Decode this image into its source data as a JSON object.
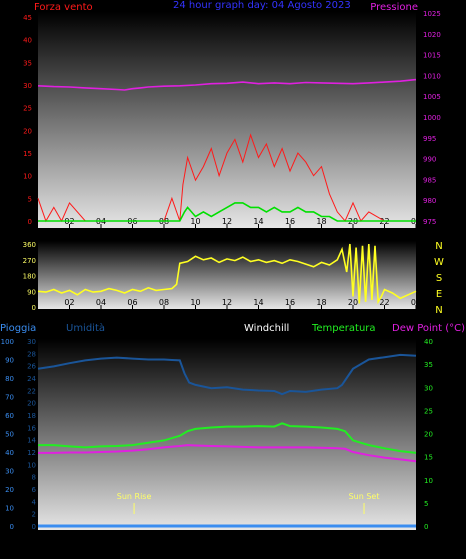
{
  "colors": {
    "wind": "#ff1a1a",
    "gust": "#00e000",
    "pressure": "#e020e0",
    "direction": "#ffff22",
    "title": "#3333ff",
    "rain": "#3a8df0",
    "humidity": "#1a5599",
    "windchill": "#ffffff",
    "temperature": "#22ee22",
    "dewpoint": "#e020e0",
    "sun": "#ffff66",
    "ticks_x": "#000000"
  },
  "chart_data": [
    {
      "type": "line",
      "title": "24 hour graph day:  04 Agosto 2023",
      "left_axis_label": "Forza vento",
      "right_axis_label": "Pressione",
      "left_ylim": [
        0,
        45
      ],
      "left_ticks": [
        0,
        5,
        10,
        15,
        20,
        25,
        30,
        35,
        40,
        45
      ],
      "right_ylim": [
        975,
        1025
      ],
      "right_ticks": [
        975,
        980,
        985,
        990,
        995,
        1000,
        1005,
        1010,
        1015,
        1020,
        1025
      ],
      "x_range": [
        0,
        24
      ],
      "x_tick_labels": [
        "02",
        "04",
        "06",
        "08",
        "10",
        "12",
        "14",
        "16",
        "18",
        "20",
        "22",
        "00"
      ],
      "series": [
        {
          "axis": "right",
          "x": [
            0,
            1,
            2,
            3,
            4,
            5,
            5.5,
            6,
            6.5,
            7,
            8,
            9,
            10,
            11,
            12,
            13,
            14,
            15,
            16,
            17,
            18,
            19,
            20,
            21,
            22,
            23,
            24
          ],
          "values": [
            1007.5,
            1007.3,
            1007.2,
            1007.0,
            1006.8,
            1006.6,
            1006.5,
            1006.8,
            1007.0,
            1007.2,
            1007.4,
            1007.5,
            1007.7,
            1008.0,
            1008.1,
            1008.4,
            1008.0,
            1008.2,
            1008.0,
            1008.3,
            1008.2,
            1008.1,
            1008.0,
            1008.2,
            1008.4,
            1008.6,
            1009.0
          ]
        },
        {
          "axis": "left",
          "x": [
            0,
            0.5,
            1,
            1.5,
            2,
            3,
            4,
            5,
            6,
            7,
            7.5,
            8,
            8.5,
            9,
            9.2,
            9.5,
            10,
            10.5,
            11,
            11.5,
            12,
            12.5,
            13,
            13.5,
            14,
            14.5,
            15,
            15.5,
            16,
            16.5,
            17,
            17.5,
            18,
            18.5,
            19,
            19.5,
            20,
            20.5,
            21,
            22,
            23,
            24
          ],
          "values": [
            5,
            0,
            3,
            0,
            4,
            0,
            0,
            0,
            0,
            0,
            0,
            0,
            5,
            0,
            8,
            14,
            9,
            12,
            16,
            10,
            15,
            18,
            13,
            19,
            14,
            17,
            12,
            16,
            11,
            15,
            13,
            10,
            12,
            6,
            2,
            0,
            4,
            0,
            2,
            0,
            0,
            0
          ]
        },
        {
          "axis": "left",
          "x": [
            0,
            9,
            9.3,
            9.5,
            10,
            10.5,
            11,
            11.5,
            12,
            12.5,
            13,
            13.5,
            14,
            14.5,
            15,
            15.5,
            16,
            16.5,
            17,
            17.5,
            18,
            18.5,
            19,
            24
          ],
          "values": [
            0,
            0,
            2,
            3,
            1,
            2,
            1,
            2,
            3,
            4,
            4,
            3,
            3,
            2,
            3,
            2,
            2,
            3,
            2,
            2,
            1,
            1,
            0,
            0
          ]
        }
      ]
    },
    {
      "type": "line",
      "ylim": [
        0,
        360
      ],
      "y_ticks": [
        0,
        90,
        180,
        270,
        360
      ],
      "direction_labels": [
        "N",
        "W",
        "S",
        "E",
        "N"
      ],
      "x_range": [
        0,
        24
      ],
      "x_tick_labels": [
        "02",
        "04",
        "06",
        "08",
        "10",
        "12",
        "14",
        "16",
        "18",
        "20",
        "22",
        "00"
      ],
      "series": [
        {
          "x": [
            0,
            0.5,
            1,
            1.5,
            2,
            2.5,
            3,
            3.5,
            4,
            4.5,
            5,
            5.5,
            6,
            6.5,
            7,
            7.5,
            8,
            8.5,
            8.8,
            9,
            9.5,
            10,
            10.5,
            11,
            11.5,
            12,
            12.5,
            13,
            13.5,
            14,
            14.5,
            15,
            15.5,
            16,
            16.5,
            17,
            17.5,
            18,
            18.5,
            19,
            19.3,
            19.6,
            19.8,
            20,
            20.2,
            20.4,
            20.6,
            20.8,
            21,
            21.2,
            21.4,
            21.6,
            21.8,
            22,
            22.5,
            23,
            23.5,
            24
          ],
          "values": [
            90,
            85,
            100,
            80,
            95,
            70,
            100,
            85,
            90,
            105,
            95,
            80,
            100,
            90,
            110,
            95,
            100,
            105,
            130,
            250,
            260,
            290,
            270,
            280,
            255,
            275,
            265,
            285,
            260,
            270,
            255,
            265,
            250,
            270,
            260,
            245,
            230,
            255,
            240,
            270,
            330,
            200,
            360,
            60,
            340,
            20,
            350,
            30,
            360,
            40,
            350,
            30,
            60,
            100,
            80,
            50,
            70,
            90
          ]
        }
      ]
    },
    {
      "type": "line",
      "legend": [
        "Pioggia",
        "Umidità",
        "Windchill",
        "Temperatura",
        "Dew Point (°C)"
      ],
      "left_axis1_ylim": [
        0,
        100
      ],
      "left_axis1_ticks": [
        0,
        10,
        20,
        30,
        40,
        50,
        60,
        70,
        80,
        90,
        100
      ],
      "left_axis2_ylim": [
        0,
        30
      ],
      "left_axis2_ticks": [
        0,
        2,
        4,
        6,
        8,
        10,
        12,
        14,
        16,
        18,
        20,
        22,
        24,
        26,
        28,
        30
      ],
      "right_axis_ylim": [
        0,
        40
      ],
      "right_axis_ticks": [
        0,
        5,
        10,
        15,
        20,
        25,
        30,
        35,
        40
      ],
      "x_range": [
        0,
        24
      ],
      "x_tick_labels": [
        "02",
        "04",
        "06",
        "08",
        "10",
        "12",
        "14",
        "16",
        "18",
        "20",
        "22",
        "00"
      ],
      "annotations": [
        {
          "label": "Sun Rise",
          "x": 6.1
        },
        {
          "label": "Sun Set",
          "x": 20.7
        }
      ],
      "series": [
        {
          "axis": "right",
          "x": [
            0,
            1,
            2,
            3,
            4,
            5,
            6,
            7,
            8,
            8.5,
            9,
            9.3,
            9.6,
            10,
            11,
            12,
            13,
            14,
            15,
            15.5,
            16,
            17,
            18,
            19,
            19.3,
            19.6,
            20,
            21,
            22,
            23,
            24
          ],
          "values": [
            34,
            34.5,
            35.2,
            35.8,
            36.2,
            36.4,
            36.2,
            36,
            36,
            35.9,
            35.8,
            33,
            31,
            30.5,
            29.8,
            30,
            29.5,
            29.3,
            29.2,
            28.5,
            29.2,
            29,
            29.5,
            29.8,
            30.5,
            32,
            34,
            36,
            36.5,
            37,
            36.8
          ]
        },
        {
          "axis": "right",
          "x": [
            0,
            1,
            2,
            3,
            4,
            5,
            6,
            7,
            8,
            9,
            9.5,
            10,
            11,
            12,
            13,
            14,
            15,
            15.5,
            16,
            17,
            18,
            19,
            19.5,
            20,
            21,
            22,
            23,
            24
          ],
          "values": [
            17.5,
            17.5,
            17.2,
            17,
            17.2,
            17.3,
            17.5,
            18,
            18.5,
            19.5,
            20.5,
            21,
            21.3,
            21.5,
            21.5,
            21.6,
            21.5,
            22.2,
            21.6,
            21.5,
            21.3,
            21,
            20.5,
            18.5,
            17.5,
            16.8,
            16.2,
            15.8
          ]
        },
        {
          "axis": "right",
          "x": [
            0,
            1,
            2,
            3,
            4,
            5,
            6,
            7,
            8,
            9,
            9.5,
            10,
            11,
            12,
            13,
            14,
            15,
            16,
            17,
            18,
            19,
            19.5,
            20,
            21,
            22,
            23,
            24
          ],
          "values": [
            15.8,
            15.8,
            15.9,
            15.9,
            16,
            16.1,
            16.3,
            16.6,
            17,
            17.3,
            17.5,
            17.4,
            17.3,
            17.2,
            17.1,
            17,
            17,
            17,
            17,
            16.9,
            16.8,
            16.7,
            16,
            15.3,
            14.8,
            14.4,
            14
          ]
        },
        {
          "axis": "left1",
          "x": [
            0,
            24
          ],
          "values": [
            0,
            0
          ]
        }
      ]
    }
  ]
}
